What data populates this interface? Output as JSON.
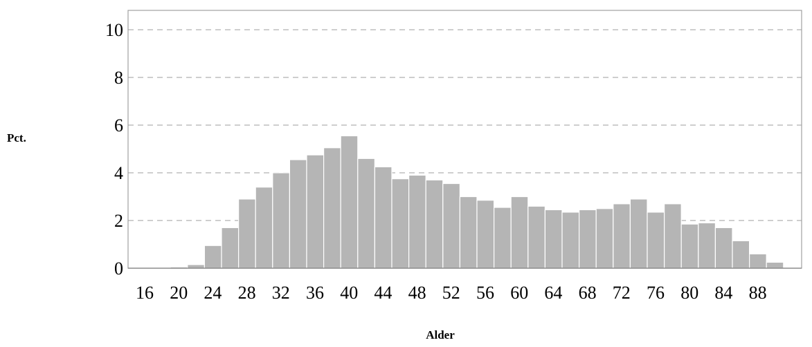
{
  "chart_data": {
    "type": "bar",
    "title": "",
    "xlabel": "Alder",
    "ylabel": "Pct.",
    "ylim": [
      0,
      10.5
    ],
    "yticks": [
      0,
      2,
      4,
      6,
      8,
      10
    ],
    "grid": "horizontal-dashed",
    "x_tick_labels": [
      "16",
      "20",
      "24",
      "28",
      "32",
      "36",
      "40",
      "44",
      "48",
      "52",
      "56",
      "60",
      "64",
      "68",
      "72",
      "76",
      "80",
      "84",
      "88"
    ],
    "categories": [
      16,
      18,
      20,
      22,
      24,
      26,
      28,
      30,
      32,
      34,
      36,
      38,
      40,
      42,
      44,
      46,
      48,
      50,
      52,
      54,
      56,
      58,
      60,
      62,
      64,
      66,
      68,
      70,
      72,
      74,
      76,
      78,
      80,
      82,
      84,
      86,
      88,
      90
    ],
    "values": [
      0.0,
      0.0,
      0.05,
      0.15,
      0.95,
      1.7,
      2.9,
      3.4,
      4.0,
      4.55,
      4.75,
      5.05,
      5.55,
      4.6,
      4.25,
      3.75,
      3.9,
      3.7,
      3.55,
      3.0,
      2.85,
      2.55,
      3.0,
      2.6,
      2.45,
      2.35,
      2.45,
      2.5,
      2.7,
      2.9,
      2.35,
      2.7,
      1.85,
      1.9,
      1.7,
      1.15,
      0.6,
      0.25
    ],
    "colors": {
      "bar": "#b5b5b5",
      "grid": "#b0b0b0",
      "frame": "#a0a0a0"
    }
  }
}
